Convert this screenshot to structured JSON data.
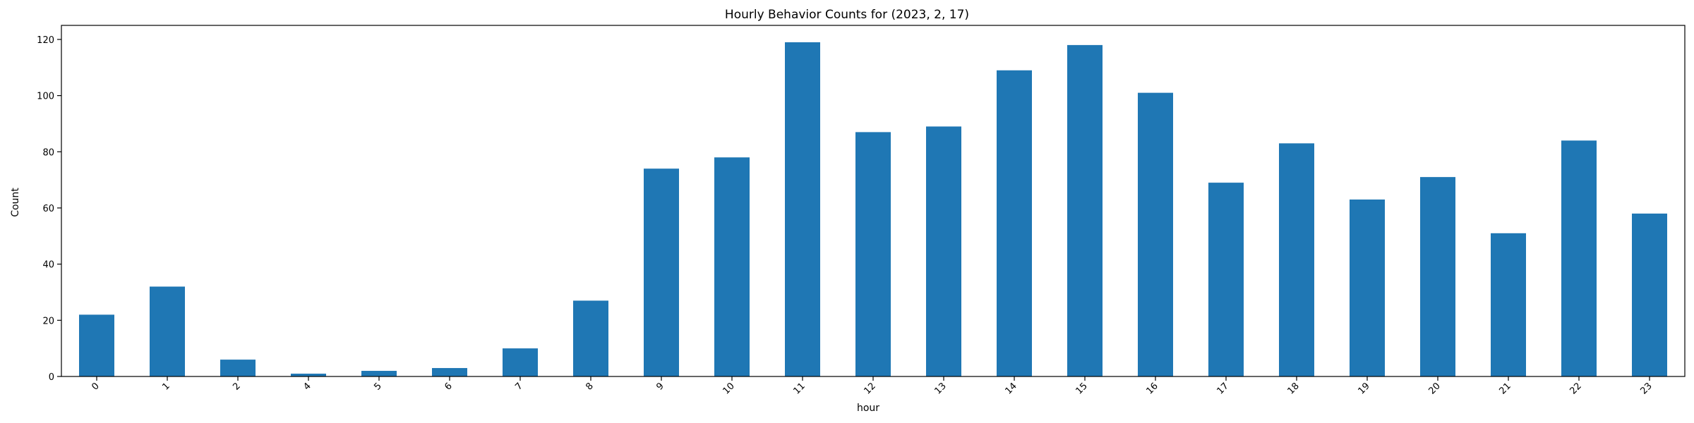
{
  "chart_data": {
    "type": "bar",
    "title": "Hourly Behavior Counts for (2023, 2, 17)",
    "xlabel": "hour",
    "ylabel": "Count",
    "categories": [
      "0",
      "1",
      "2",
      "4",
      "5",
      "6",
      "7",
      "8",
      "9",
      "10",
      "11",
      "12",
      "13",
      "14",
      "15",
      "16",
      "17",
      "18",
      "19",
      "20",
      "21",
      "22",
      "23"
    ],
    "values": [
      22,
      32,
      6,
      1,
      2,
      3,
      10,
      27,
      74,
      78,
      119,
      87,
      89,
      109,
      118,
      101,
      69,
      83,
      63,
      71,
      51,
      84,
      58
    ],
    "ylim": [
      0,
      125
    ],
    "yticks": [
      0,
      20,
      40,
      60,
      80,
      100,
      120
    ],
    "bar_color": "#1f77b4",
    "grid": false,
    "legend": "none"
  }
}
